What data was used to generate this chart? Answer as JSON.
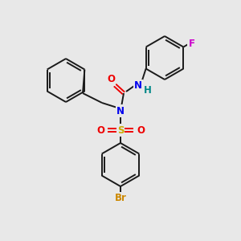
{
  "bg_color": "#e8e8e8",
  "bond_color": "#1a1a1a",
  "atom_colors": {
    "N": "#0000ee",
    "O": "#ee0000",
    "S": "#ccaa00",
    "Br": "#cc8800",
    "F": "#cc00cc",
    "H": "#008888",
    "C": "#1a1a1a"
  },
  "figsize": [
    3.0,
    3.0
  ],
  "dpi": 100,
  "lw": 1.4,
  "ring_r": 27,
  "font_size": 8.5
}
